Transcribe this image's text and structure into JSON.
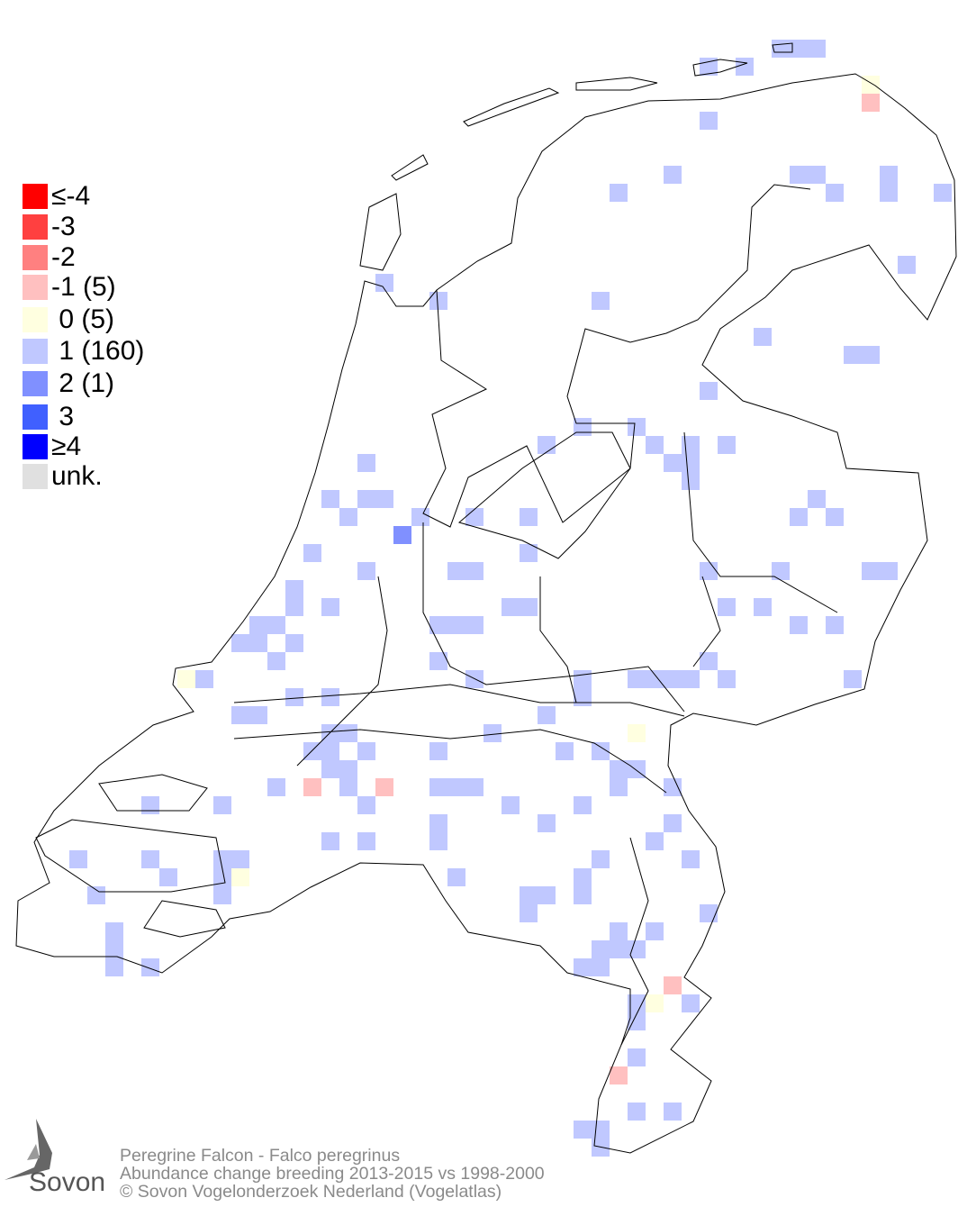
{
  "legend": {
    "items": [
      {
        "label": "≤-4",
        "color": "#ff0000"
      },
      {
        "label": "-3",
        "color": "#ff4040"
      },
      {
        "label": "-2",
        "color": "#ff8080"
      },
      {
        "label": "-1 (5)",
        "color": "#ffc0c0"
      },
      {
        "label": " 0 (5)",
        "color": "#ffffe0"
      },
      {
        "label": " 1 (160)",
        "color": "#c0c8ff"
      },
      {
        "label": " 2 (1)",
        "color": "#8090ff"
      },
      {
        "label": " 3",
        "color": "#4060ff"
      },
      {
        "label": "≥4",
        "color": "#0000ff"
      },
      {
        "label": "unk.",
        "color": "#e0e0e0"
      }
    ]
  },
  "footer": {
    "species": "Peregrine Falcon - Falco peregrinus",
    "subtitle": "Abundance change breeding  2013-2015 vs 1998-2000",
    "copyright": "© Sovon Vogelonderzoek Nederland (Vogelatlas)"
  },
  "logo": {
    "text": "Sovon"
  }
}
